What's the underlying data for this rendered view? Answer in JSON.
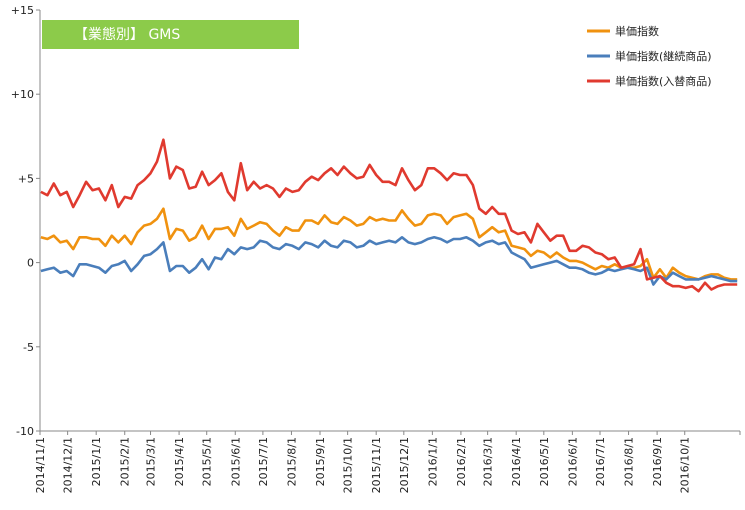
{
  "colors": {
    "orange": "#F0920F",
    "blue": "#4A7EBB",
    "red": "#E03A2F",
    "title_bg": "#8CCB4A",
    "axis": "#888888"
  },
  "chart_data": {
    "type": "line",
    "title": "【業態別】 GMS",
    "ylim": [
      -10,
      15
    ],
    "yticks": [
      15,
      10,
      5,
      0,
      -5,
      -10
    ],
    "ytick_labels": [
      "+15",
      "+10",
      "+5",
      "0",
      "-5",
      "-10"
    ],
    "xlim": [
      "2014-11-01",
      "2016-11-30"
    ],
    "xtick_labels": [
      "2014/11/1",
      "2014/12/1",
      "2015/1/1",
      "2015/2/1",
      "2015/3/1",
      "2015/4/1",
      "2015/5/1",
      "2015/6/1",
      "2015/7/1",
      "2015/8/1",
      "2015/9/1",
      "2015/10/1",
      "2015/11/1",
      "2015/12/1",
      "2016/1/1",
      "2016/2/1",
      "2016/3/1",
      "2016/4/1",
      "2016/5/1",
      "2016/6/1",
      "2016/7/1",
      "2016/8/1",
      "2016/9/1",
      "2016/10/1"
    ],
    "x": [
      "2014-11-02",
      "2014-11-09",
      "2014-11-16",
      "2014-11-23",
      "2014-11-30",
      "2014-12-07",
      "2014-12-14",
      "2014-12-21",
      "2014-12-28",
      "2015-01-04",
      "2015-01-11",
      "2015-01-18",
      "2015-01-25",
      "2015-02-01",
      "2015-02-08",
      "2015-02-15",
      "2015-02-22",
      "2015-03-01",
      "2015-03-08",
      "2015-03-15",
      "2015-03-22",
      "2015-03-29",
      "2015-04-05",
      "2015-04-12",
      "2015-04-19",
      "2015-04-26",
      "2015-05-03",
      "2015-05-10",
      "2015-05-17",
      "2015-05-24",
      "2015-05-31",
      "2015-06-07",
      "2015-06-14",
      "2015-06-21",
      "2015-06-28",
      "2015-07-05",
      "2015-07-12",
      "2015-07-19",
      "2015-07-26",
      "2015-08-02",
      "2015-08-09",
      "2015-08-16",
      "2015-08-23",
      "2015-08-30",
      "2015-09-06",
      "2015-09-13",
      "2015-09-20",
      "2015-09-27",
      "2015-10-04",
      "2015-10-11",
      "2015-10-18",
      "2015-10-25",
      "2015-11-01",
      "2015-11-08",
      "2015-11-15",
      "2015-11-22",
      "2015-11-29",
      "2015-12-06",
      "2015-12-13",
      "2015-12-20",
      "2015-12-27",
      "2016-01-03",
      "2016-01-10",
      "2016-01-17",
      "2016-01-24",
      "2016-01-31",
      "2016-02-07",
      "2016-02-14",
      "2016-02-21",
      "2016-02-28",
      "2016-03-06",
      "2016-03-13",
      "2016-03-20",
      "2016-03-27",
      "2016-04-03",
      "2016-04-10",
      "2016-04-17",
      "2016-04-24",
      "2016-05-01",
      "2016-05-08",
      "2016-05-15",
      "2016-05-22",
      "2016-05-29",
      "2016-06-05",
      "2016-06-12",
      "2016-06-19",
      "2016-06-26",
      "2016-07-03",
      "2016-07-10",
      "2016-07-17",
      "2016-07-24",
      "2016-07-31",
      "2016-08-07",
      "2016-08-14",
      "2016-08-21",
      "2016-08-28",
      "2016-09-04",
      "2016-09-11",
      "2016-09-18",
      "2016-09-25",
      "2016-10-02",
      "2016-10-09",
      "2016-10-16",
      "2016-10-23",
      "2016-10-30",
      "2016-11-06",
      "2016-11-13",
      "2016-11-20",
      "2016-11-27"
    ],
    "series": [
      {
        "name": "単価指数",
        "color_key": "orange",
        "values": [
          1.5,
          1.4,
          1.6,
          1.2,
          1.3,
          0.8,
          1.5,
          1.5,
          1.4,
          1.4,
          1.0,
          1.6,
          1.2,
          1.6,
          1.1,
          1.8,
          2.2,
          2.3,
          2.6,
          3.2,
          1.4,
          2.0,
          1.9,
          1.3,
          1.5,
          2.2,
          1.4,
          2.0,
          2.0,
          2.1,
          1.6,
          2.6,
          2.0,
          2.2,
          2.4,
          2.3,
          1.9,
          1.6,
          2.1,
          1.9,
          1.9,
          2.5,
          2.5,
          2.3,
          2.8,
          2.4,
          2.3,
          2.7,
          2.5,
          2.2,
          2.3,
          2.7,
          2.5,
          2.6,
          2.5,
          2.5,
          3.1,
          2.6,
          2.2,
          2.3,
          2.8,
          2.9,
          2.8,
          2.3,
          2.7,
          2.8,
          2.9,
          2.6,
          1.5,
          1.8,
          2.1,
          1.8,
          1.9,
          1.0,
          0.9,
          0.8,
          0.4,
          0.7,
          0.6,
          0.3,
          0.6,
          0.3,
          0.1,
          0.1,
          0.0,
          -0.2,
          -0.4,
          -0.2,
          -0.3,
          -0.1,
          -0.3,
          -0.3,
          -0.3,
          -0.2,
          0.2,
          -0.9,
          -0.4,
          -0.9,
          -0.3,
          -0.6,
          -0.8,
          -0.9,
          -1.0,
          -0.8,
          -0.7,
          -0.7,
          -0.9,
          -1.0,
          -1.0
        ]
      },
      {
        "name": "単価指数(継続商品)",
        "color_key": "blue",
        "values": [
          -0.5,
          -0.4,
          -0.3,
          -0.6,
          -0.5,
          -0.8,
          -0.1,
          -0.1,
          -0.2,
          -0.3,
          -0.6,
          -0.2,
          -0.1,
          0.1,
          -0.5,
          -0.1,
          0.4,
          0.5,
          0.8,
          1.2,
          -0.5,
          -0.2,
          -0.2,
          -0.6,
          -0.3,
          0.2,
          -0.4,
          0.3,
          0.2,
          0.8,
          0.5,
          0.9,
          0.8,
          0.9,
          1.3,
          1.2,
          0.9,
          0.8,
          1.1,
          1.0,
          0.8,
          1.2,
          1.1,
          0.9,
          1.3,
          1.0,
          0.9,
          1.3,
          1.2,
          0.9,
          1.0,
          1.3,
          1.1,
          1.2,
          1.3,
          1.2,
          1.5,
          1.2,
          1.1,
          1.2,
          1.4,
          1.5,
          1.4,
          1.2,
          1.4,
          1.4,
          1.5,
          1.3,
          1.0,
          1.2,
          1.3,
          1.1,
          1.2,
          0.6,
          0.4,
          0.2,
          -0.3,
          -0.2,
          -0.1,
          0.0,
          0.1,
          -0.1,
          -0.3,
          -0.3,
          -0.4,
          -0.6,
          -0.7,
          -0.6,
          -0.4,
          -0.5,
          -0.4,
          -0.3,
          -0.4,
          -0.5,
          -0.3,
          -1.3,
          -0.8,
          -1.0,
          -0.6,
          -0.8,
          -1.0,
          -1.0,
          -1.0,
          -0.9,
          -0.8,
          -0.9,
          -1.0,
          -1.1,
          -1.1
        ]
      },
      {
        "name": "単価指数(入替商品)",
        "color_key": "red",
        "values": [
          4.2,
          4.0,
          4.7,
          4.0,
          4.2,
          3.3,
          4.0,
          4.8,
          4.3,
          4.4,
          3.7,
          4.6,
          3.3,
          3.9,
          3.8,
          4.6,
          4.9,
          5.3,
          6.0,
          7.3,
          5.0,
          5.7,
          5.5,
          4.4,
          4.5,
          5.4,
          4.6,
          4.9,
          5.3,
          4.2,
          3.7,
          5.9,
          4.3,
          4.8,
          4.4,
          4.6,
          4.4,
          3.9,
          4.4,
          4.2,
          4.3,
          4.8,
          5.1,
          4.9,
          5.3,
          5.6,
          5.2,
          5.7,
          5.3,
          5.0,
          5.1,
          5.8,
          5.2,
          4.8,
          4.8,
          4.6,
          5.6,
          4.9,
          4.3,
          4.6,
          5.6,
          5.6,
          5.3,
          4.9,
          5.3,
          5.2,
          5.2,
          4.6,
          3.2,
          2.9,
          3.3,
          2.9,
          2.9,
          1.9,
          1.7,
          1.8,
          1.2,
          2.3,
          1.8,
          1.3,
          1.6,
          1.6,
          0.7,
          0.7,
          1.0,
          0.9,
          0.6,
          0.5,
          0.2,
          0.3,
          -0.3,
          -0.2,
          -0.1,
          0.8,
          -1.0,
          -0.9,
          -0.8,
          -1.2,
          -1.4,
          -1.4,
          -1.5,
          -1.4,
          -1.7,
          -1.2,
          -1.6,
          -1.4,
          -1.3,
          -1.3,
          -1.3
        ]
      }
    ]
  }
}
